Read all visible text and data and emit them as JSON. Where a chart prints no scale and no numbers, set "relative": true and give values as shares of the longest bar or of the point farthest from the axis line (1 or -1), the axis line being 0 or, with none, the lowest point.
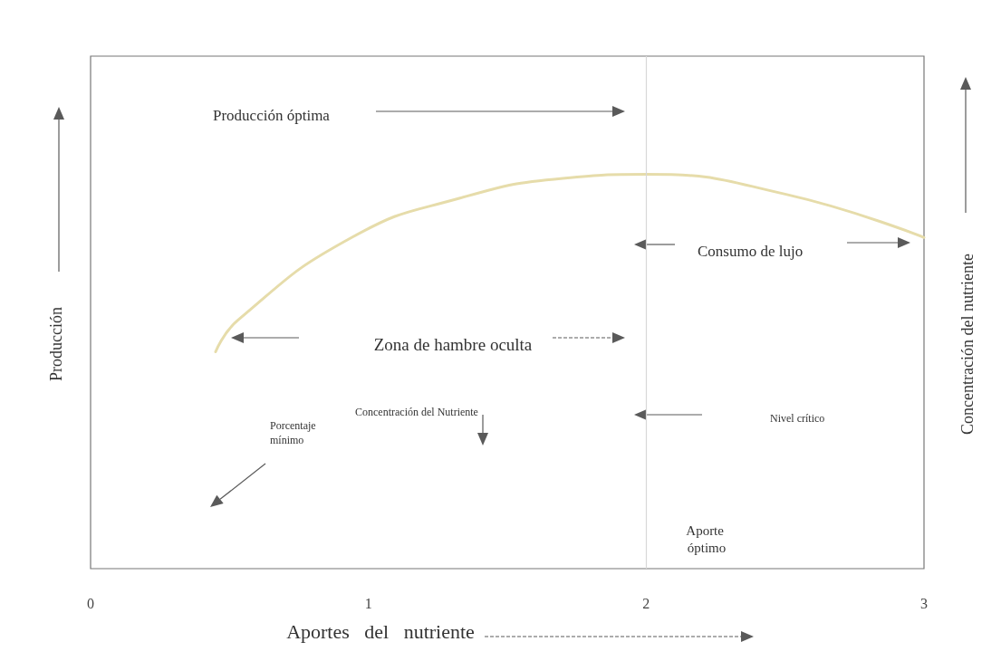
{
  "chart_data": {
    "type": "line",
    "relative": true,
    "xlabel": "Aportes   del   nutriente",
    "ylabel": "Producción",
    "y2label": "Concentración del nutriente",
    "x": [
      0.45,
      0.53,
      0.94,
      1.33,
      1.7,
      2.0,
      2.5,
      3.0
    ],
    "series": [
      {
        "color": "#e6dcaa",
        "values": [
          0.55,
          0.63,
          0.84,
          0.94,
          0.99,
          1.0,
          0.95,
          0.84
        ]
      }
    ],
    "xlim": [
      0,
      3
    ],
    "xticks": [
      0,
      1,
      2,
      3
    ],
    "marker": "none",
    "grid": false,
    "ref_lines": [
      {
        "axis": "x",
        "value": 2,
        "color": "#d8d8d8"
      }
    ],
    "annotations": [
      "Producción óptima",
      "Consumo de lujo",
      "Zona de hambre oculta",
      "Concentración del Nutriente",
      "Nivel crítico",
      "Porcentaje mínimo",
      "Aporte óptimo"
    ]
  }
}
